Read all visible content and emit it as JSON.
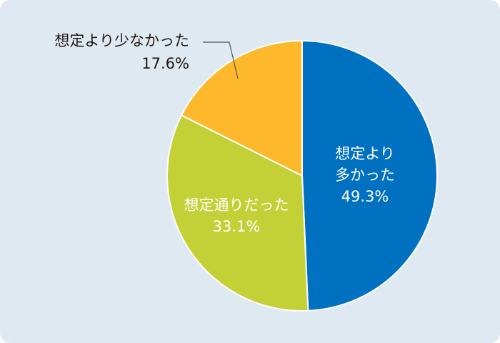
{
  "chart_data": {
    "type": "pie",
    "title": "",
    "start": "top",
    "direction": "clockwise",
    "slices": [
      {
        "label_lines": [
          "想定より",
          "多かった"
        ],
        "value": 49.3,
        "value_label": "49.3%",
        "color": "#0071c1",
        "text_color": "#ffffff"
      },
      {
        "label_lines": [
          "想定通りだった"
        ],
        "value": 33.1,
        "value_label": "33.1%",
        "color": "#c3d137",
        "text_color": "#ffffff"
      },
      {
        "label_lines": [
          "想定より少なかった"
        ],
        "value": 17.6,
        "value_label": "17.6%",
        "color": "#fdb92b",
        "text_color": "#231815"
      }
    ],
    "background": "#dfe9f2"
  }
}
